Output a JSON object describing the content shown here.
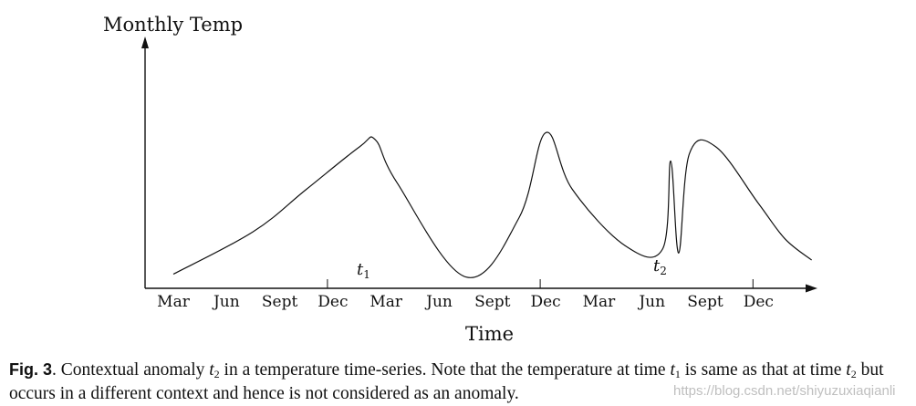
{
  "chart_data": {
    "type": "line",
    "ylabel": "Monthly Temp",
    "xlabel": "Time",
    "categories": [
      "Mar",
      "Jun",
      "Sept",
      "Dec",
      "Mar",
      "Jun",
      "Sept",
      "Dec",
      "Mar",
      "Jun",
      "Sept",
      "Dec"
    ],
    "series": [
      {
        "x": [
          0,
          1.5,
          2.5,
          3.5,
          3.8,
          4.2,
          5.5,
          6.5,
          7.0,
          7.5,
          8.5,
          9.2,
          9.35,
          9.5,
          9.7,
          10.2,
          11.0,
          11.5,
          12.0
        ],
        "values": [
          1,
          4,
          7,
          10,
          10.5,
          7.5,
          0.8,
          5,
          11,
          7,
          3,
          2.8,
          9,
          2.5,
          9.5,
          10,
          6,
          3.5,
          2
        ]
      }
    ],
    "annotations": [
      {
        "label": "t",
        "sub": "1"
      },
      {
        "label": "t",
        "sub": "2"
      }
    ],
    "grid": false
  },
  "caption": {
    "fig_label": "Fig. 3",
    "part1": ".   Contextual anomaly ",
    "part2": " in a temperature time-series. Note that the temperature at time ",
    "part3": " is same as that at time ",
    "part4": " but occurs in a different context and hence is not considered as an anomaly.",
    "var": "t",
    "sub1": "1",
    "sub2": "2"
  },
  "watermark": "https://blog.csdn.net/shiyuzuxiaqianli"
}
